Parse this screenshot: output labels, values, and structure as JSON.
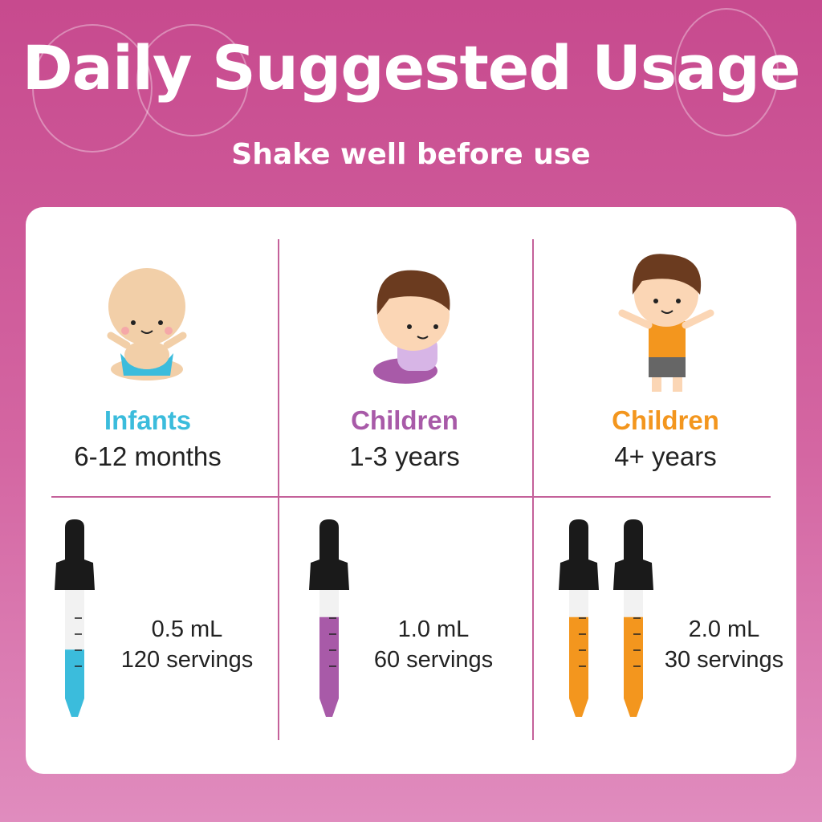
{
  "header": {
    "title": "Daily Suggested Usage",
    "subtitle": "Shake well before use"
  },
  "groups": [
    {
      "label": "Infants",
      "age": "6-12 months",
      "dose": "0.5 mL",
      "servings": "120 servings",
      "color": "#3bbcdc",
      "droppers": 1,
      "fill_fraction": 0.45,
      "icon": "baby-icon"
    },
    {
      "label": "Children",
      "age": "1-3 years",
      "dose": "1.0 mL",
      "servings": "60 servings",
      "color": "#a85aa8",
      "droppers": 1,
      "fill_fraction": 0.75,
      "icon": "toddler-icon"
    },
    {
      "label": "Children",
      "age": "4+ years",
      "dose": "2.0 mL",
      "servings": "30 servings",
      "color": "#f3961e",
      "droppers": 2,
      "fill_fraction": 0.75,
      "icon": "child-icon"
    }
  ]
}
